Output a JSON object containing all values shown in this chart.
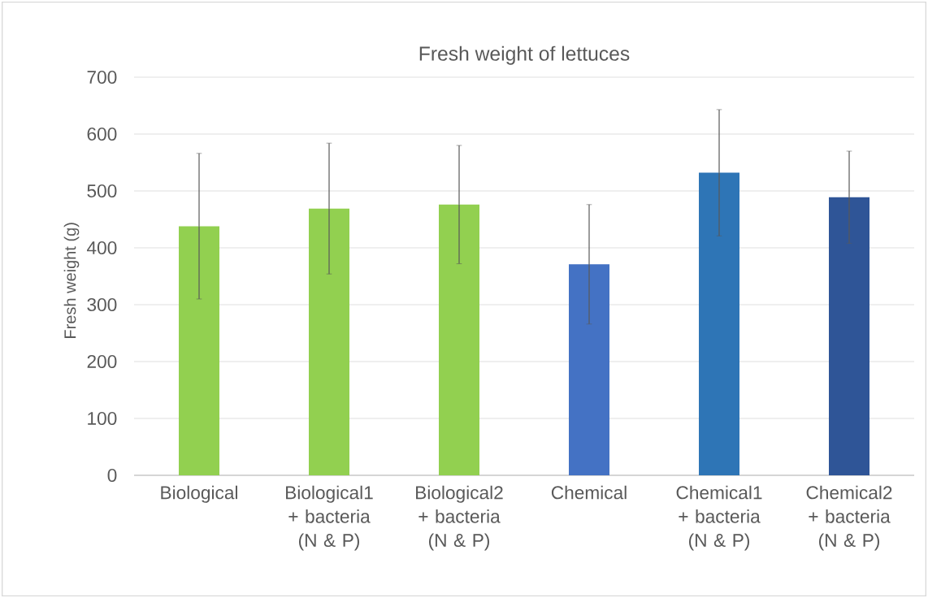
{
  "chart_data": {
    "type": "bar",
    "title": "Fresh weight of lettuces",
    "ylabel": "Fresh weight (g)",
    "categories": [
      "Biological",
      "Biological1 + bacteria (N & P)",
      "Biological2 + bacteria (N & P)",
      "Chemical",
      "Chemical1 + bacteria (N & P)",
      "Chemical2 + bacteria (N & P)"
    ],
    "values": [
      438,
      469,
      476,
      371,
      532,
      489
    ],
    "errors": [
      128,
      115,
      104,
      105,
      111,
      81
    ],
    "colors": [
      "#92d050",
      "#92d050",
      "#92d050",
      "#4472c4",
      "#2e75b6",
      "#2f5597"
    ],
    "ylim": [
      0,
      700
    ],
    "yticks": [
      0,
      100,
      200,
      300,
      400,
      500,
      600,
      700
    ],
    "grid": "y"
  }
}
